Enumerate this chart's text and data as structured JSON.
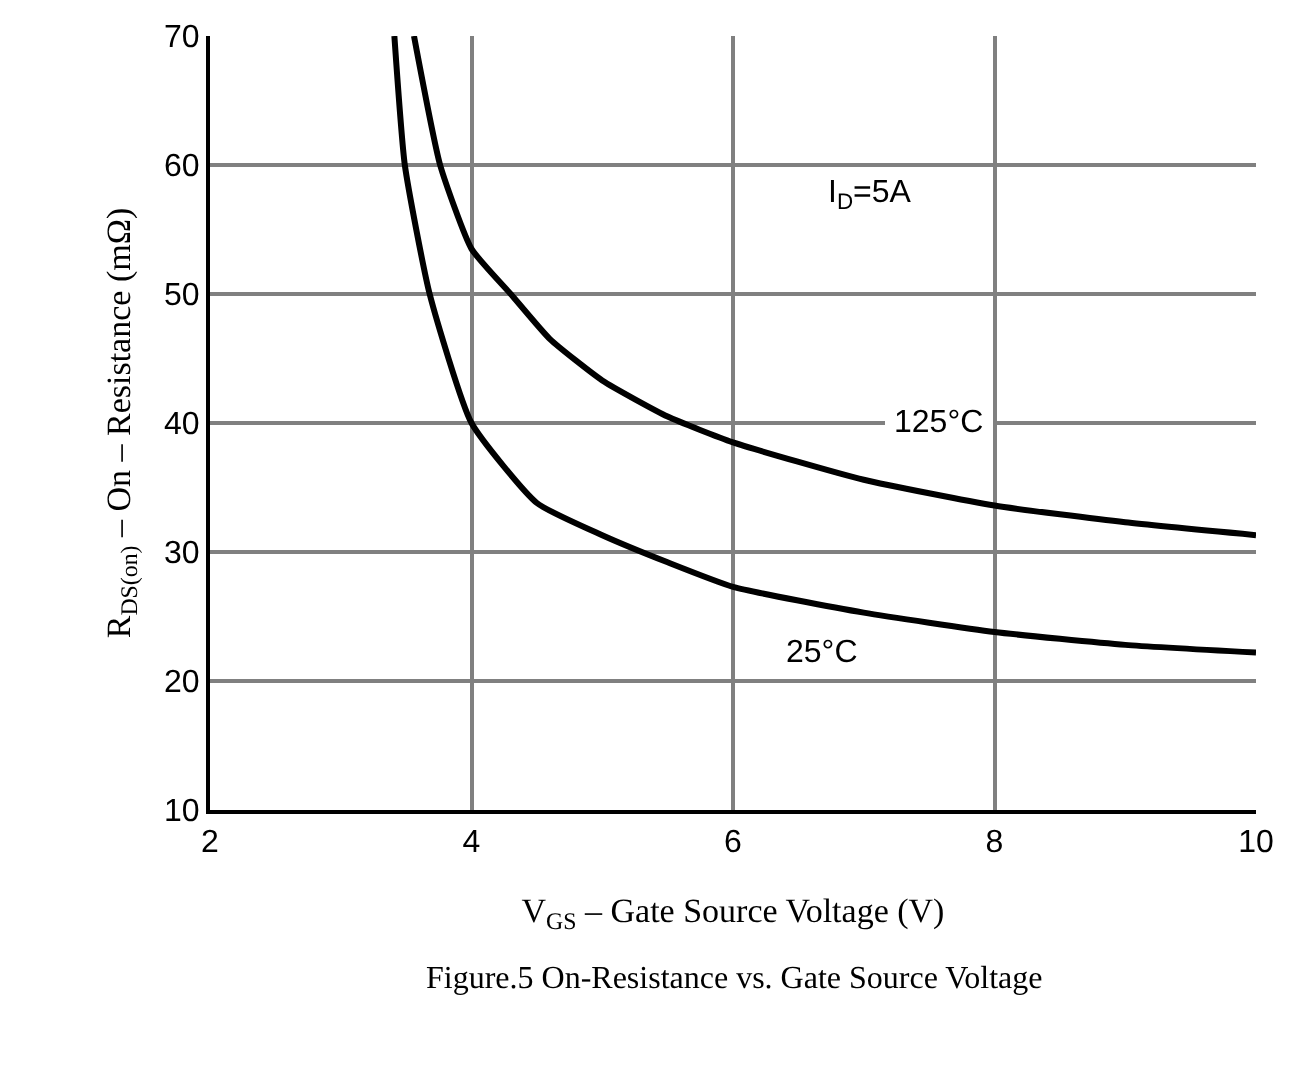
{
  "chart_data": {
    "type": "line",
    "xlabel": "V$_{GS}$ – Gate Source Voltage (V)",
    "ylabel": "R$_{DS(on)}$ – On – Resistance (mΩ)",
    "xlim": [
      2,
      10
    ],
    "ylim": [
      10,
      70
    ],
    "xticks": [
      2,
      4,
      6,
      8,
      10
    ],
    "yticks": [
      10,
      20,
      30,
      40,
      50,
      60,
      70
    ],
    "grid": true,
    "legend": false,
    "marker": "none",
    "line_style": "solid",
    "series": [
      {
        "name": "25°C",
        "color": "#000000",
        "x": [
          3.41,
          3.49,
          3.68,
          4.0,
          4.5,
          5,
          5.5,
          6,
          7,
          8,
          9,
          10
        ],
        "values": [
          70,
          60,
          50,
          40,
          33.8,
          31.3,
          29.2,
          27.3,
          25.3,
          23.8,
          22.8,
          22.2
        ]
      },
      {
        "name": "125°C",
        "color": "#000000",
        "x": [
          3.56,
          3.76,
          4.0,
          4.3,
          4.6,
          5,
          5.5,
          6,
          7,
          8,
          9,
          10
        ],
        "values": [
          70,
          60,
          53.5,
          50,
          46.5,
          43.3,
          40.5,
          38.5,
          35.6,
          33.6,
          32.3,
          31.3
        ]
      }
    ],
    "annotations": [
      "I$_{D}$=5A",
      "Figure.5 On-Resistance vs. Gate Source Voltage"
    ]
  }
}
